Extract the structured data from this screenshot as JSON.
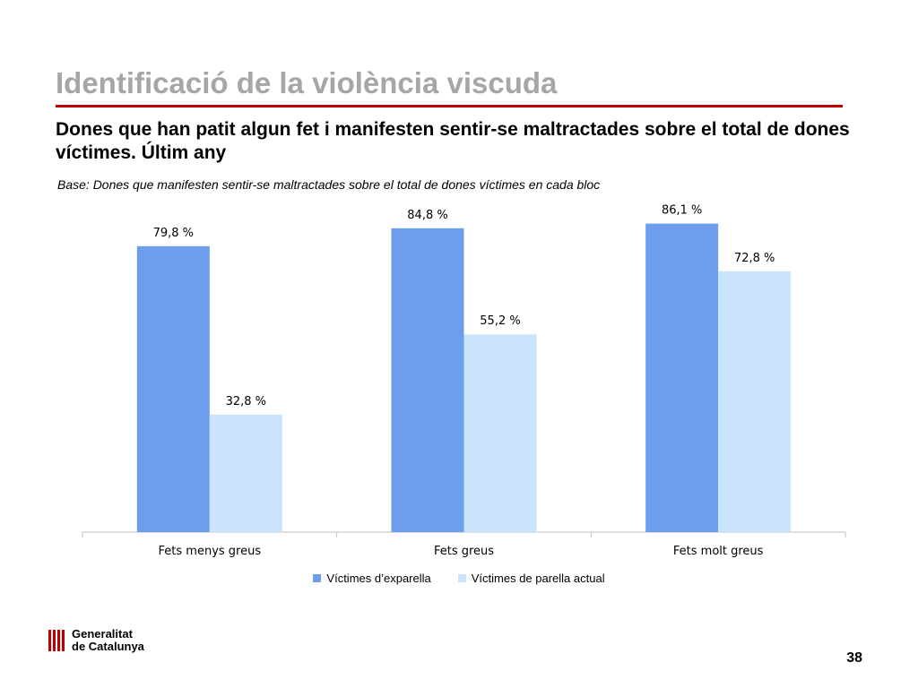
{
  "slide": {
    "title": "Identificació de la violència viscuda",
    "subtitle": "Dones que han patit algun fet i manifesten sentir-se maltractades sobre el total de dones víctimes. Últim any",
    "base_note": "Base: Dones que manifesten sentir-se maltractades sobre el total de dones víctimes en cada bloc",
    "page_number": "38"
  },
  "logo": {
    "line1": "Generalitat",
    "line2": "de Catalunya",
    "stripe_color": "#c00000"
  },
  "colors": {
    "accent_rule": "#c00000",
    "title_gray": "#a6a6a6"
  },
  "chart_data": {
    "type": "bar",
    "categories": [
      "Fets menys greus",
      "Fets greus",
      "Fets molt greus"
    ],
    "series": [
      {
        "name": "Víctimes d’exparella",
        "values": [
          79.8,
          84.8,
          86.1
        ],
        "labels": [
          "79,8 %",
          "84,8 %",
          "86,1 %"
        ],
        "color": "#6d9eeb"
      },
      {
        "name": "Víctimes de parella actual",
        "values": [
          32.8,
          55.2,
          72.8
        ],
        "labels": [
          "32,8 %",
          "55,2 %",
          "72,8 %"
        ],
        "color": "#c9e4fb"
      }
    ],
    "title": "",
    "xlabel": "",
    "ylabel": "",
    "ylim": [
      0,
      100
    ],
    "grid": false,
    "legend": "bottom"
  }
}
